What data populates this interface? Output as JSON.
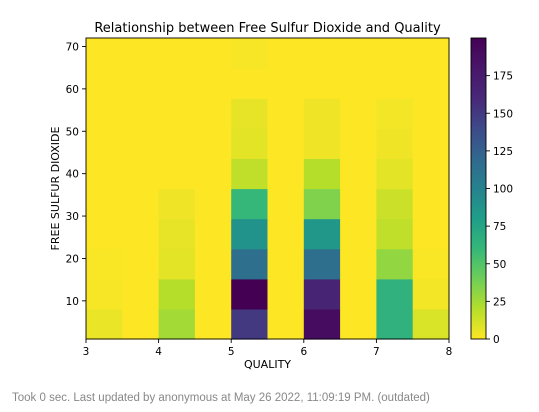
{
  "chart_data": {
    "type": "heatmap",
    "title": "Relationship between Free Sulfur Dioxide and Quality",
    "xlabel": "QUALITY",
    "ylabel": "FREE SULFUR DIOXIDE",
    "xlim": [
      3,
      8
    ],
    "ylim": [
      1,
      72
    ],
    "x_bin_edges": [
      3.0,
      3.5,
      4.0,
      4.5,
      5.0,
      5.5,
      6.0,
      6.5,
      7.0,
      7.5,
      8.0
    ],
    "y_bin_edges": [
      1.0,
      8.1,
      15.2,
      22.3,
      29.4,
      36.5,
      43.6,
      50.7,
      57.8,
      64.9,
      72.0
    ],
    "counts": [
      [
        5,
        0,
        25,
        0,
        150,
        0,
        190,
        0,
        65,
        10
      ],
      [
        2,
        0,
        20,
        0,
        200,
        0,
        165,
        0,
        65,
        3
      ],
      [
        1,
        0,
        7,
        0,
        115,
        0,
        115,
        0,
        30,
        1
      ],
      [
        0,
        0,
        6,
        0,
        88,
        0,
        85,
        0,
        17,
        0
      ],
      [
        0,
        0,
        4,
        0,
        60,
        0,
        35,
        0,
        14,
        0
      ],
      [
        0,
        0,
        0,
        0,
        17,
        0,
        20,
        0,
        7,
        0
      ],
      [
        0,
        0,
        0,
        0,
        7,
        0,
        4,
        0,
        4,
        0
      ],
      [
        0,
        0,
        0,
        0,
        6,
        0,
        4,
        0,
        3,
        0
      ],
      [
        0,
        0,
        0,
        0,
        0,
        0,
        0,
        0,
        0,
        0
      ],
      [
        0,
        0,
        0,
        0,
        2,
        0,
        0,
        0,
        0,
        0
      ]
    ],
    "x_ticks": [
      3,
      4,
      5,
      6,
      7,
      8
    ],
    "y_ticks": [
      10,
      20,
      30,
      40,
      50,
      60,
      70
    ],
    "colorbar": {
      "range": [
        0,
        200
      ],
      "ticks": [
        0,
        25,
        50,
        75,
        100,
        125,
        150,
        175
      ],
      "colormap": "viridis_r"
    },
    "grid": false
  },
  "status": {
    "text": "Took 0 sec. Last updated by anonymous at May 26 2022, 11:09:19 PM. (outdated)"
  }
}
